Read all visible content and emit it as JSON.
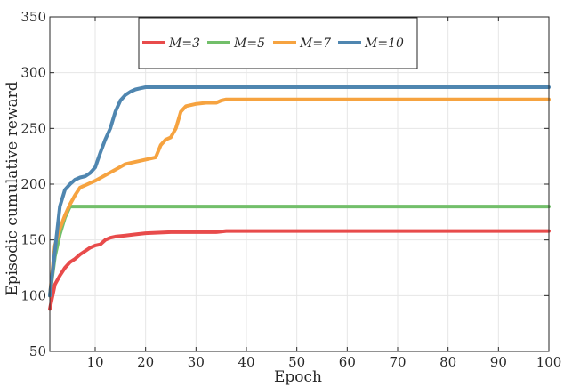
{
  "chart_data": {
    "type": "line",
    "title": "",
    "xlabel": "Epoch",
    "ylabel": "Episodic cumulative reward",
    "xlim": [
      1,
      100
    ],
    "ylim": [
      50,
      350
    ],
    "x_ticks": [
      10,
      20,
      30,
      40,
      50,
      60,
      70,
      80,
      90,
      100
    ],
    "y_ticks": [
      50,
      100,
      150,
      200,
      250,
      300,
      350
    ],
    "grid": true,
    "legend": "top-left",
    "series": [
      {
        "name": "M=3",
        "color": "#E84B4B",
        "x": [
          1,
          2,
          3,
          4,
          5,
          6,
          7,
          8,
          9,
          10,
          11,
          12,
          13,
          14,
          16,
          18,
          20,
          25,
          30,
          34,
          36,
          40,
          100
        ],
        "y": [
          88,
          110,
          118,
          125,
          130,
          133,
          137,
          140,
          143,
          145,
          146,
          150,
          152,
          153,
          154,
          155,
          156,
          157,
          157,
          157,
          158,
          158,
          158
        ]
      },
      {
        "name": "M=5",
        "color": "#72BF6A",
        "x": [
          1,
          2,
          3,
          4,
          5,
          6,
          100
        ],
        "y": [
          100,
          135,
          155,
          170,
          180,
          180,
          180
        ]
      },
      {
        "name": "M=7",
        "color": "#F6A340",
        "x": [
          1,
          2,
          3,
          4,
          5,
          6,
          7,
          8,
          10,
          12,
          14,
          16,
          18,
          20,
          22,
          23,
          24,
          25,
          26,
          27,
          28,
          30,
          32,
          34,
          35,
          36,
          40,
          100
        ],
        "y": [
          100,
          145,
          160,
          172,
          182,
          190,
          197,
          199,
          203,
          208,
          213,
          218,
          220,
          222,
          224,
          235,
          240,
          242,
          250,
          265,
          270,
          272,
          273,
          273,
          275,
          276,
          276,
          276
        ]
      },
      {
        "name": "M=10",
        "color": "#4F86B0",
        "x": [
          1,
          2,
          3,
          4,
          5,
          6,
          7,
          8,
          9,
          10,
          11,
          12,
          13,
          14,
          15,
          16,
          17,
          18,
          19,
          20,
          25,
          40,
          100
        ],
        "y": [
          100,
          140,
          180,
          195,
          200,
          204,
          206,
          207,
          210,
          215,
          228,
          240,
          250,
          265,
          275,
          280,
          283,
          285,
          286,
          287,
          287,
          287,
          287
        ]
      }
    ]
  }
}
